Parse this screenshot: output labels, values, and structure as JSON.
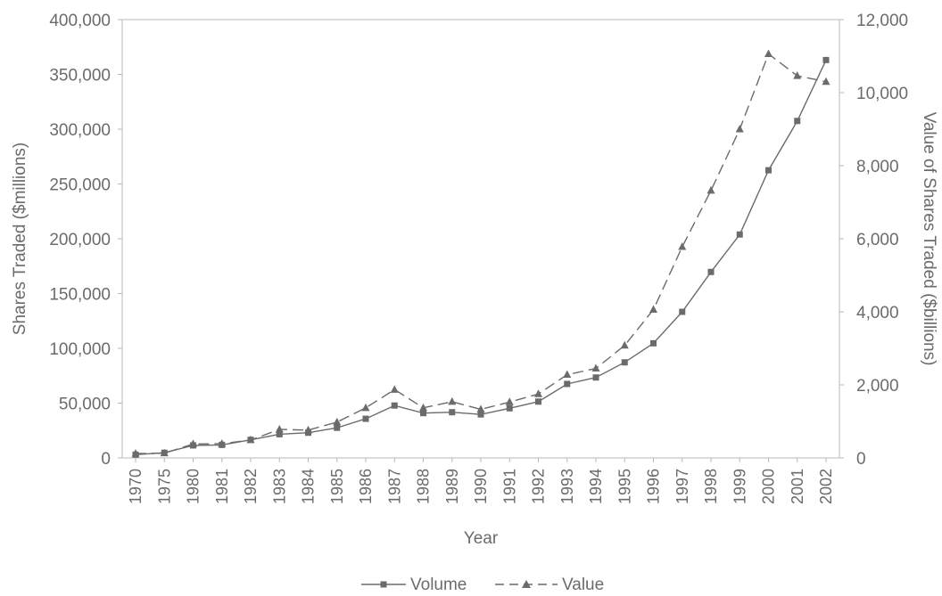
{
  "chart_data": {
    "type": "line",
    "xlabel": "Year",
    "ylabel_left": "Shares Traded ($millions)",
    "ylabel_right": "Value of Shares Traded ($billions)",
    "categories": [
      "1970",
      "1975",
      "1980",
      "1981",
      "1982",
      "1983",
      "1984",
      "1985",
      "1986",
      "1987",
      "1988",
      "1989",
      "1990",
      "1991",
      "1992",
      "1993",
      "1994",
      "1995",
      "1996",
      "1997",
      "1998",
      "1999",
      "2000",
      "2001",
      "2002"
    ],
    "y_left": {
      "min": 0,
      "max": 400000,
      "ticks": [
        "0",
        "50,000",
        "100,000",
        "150,000",
        "200,000",
        "250,000",
        "300,000",
        "350,000",
        "400,000"
      ]
    },
    "y_right": {
      "min": 0,
      "max": 12000,
      "ticks": [
        "0",
        "2,000",
        "4,000",
        "6,000",
        "8,000",
        "10,000",
        "12,000"
      ]
    },
    "grid": false,
    "legend_position": "bottom",
    "series": [
      {
        "name": "Volume",
        "axis": "left",
        "marker": "square",
        "line_style": "solid",
        "color": "#6b6b6b",
        "values": [
          3000,
          4700,
          11400,
          11900,
          16500,
          21600,
          23000,
          27500,
          35700,
          47800,
          40900,
          41700,
          39700,
          45300,
          51400,
          67500,
          73400,
          87200,
          104600,
          133300,
          169700,
          203900,
          262500,
          307500,
          363100
        ]
      },
      {
        "name": "Value",
        "axis": "right",
        "marker": "triangle",
        "line_style": "dashed",
        "color": "#6b6b6b",
        "values": [
          120,
          130,
          380,
          390,
          490,
          780,
          760,
          980,
          1370,
          1870,
          1370,
          1540,
          1330,
          1530,
          1750,
          2280,
          2450,
          3080,
          4060,
          5780,
          7320,
          9000,
          11060,
          10460,
          10300
        ]
      }
    ]
  }
}
